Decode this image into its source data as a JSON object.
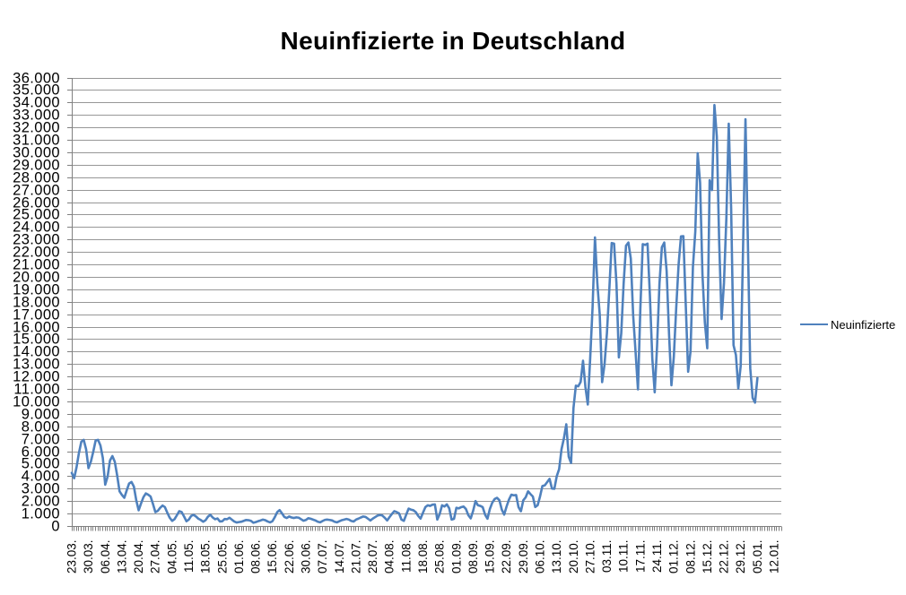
{
  "title": "Neuinfizierte in Deutschland",
  "legend": {
    "series_label": "Neuinfizierte"
  },
  "colors": {
    "series_line": "#4F81BD",
    "gridline": "#979797",
    "axis": "#808080",
    "text": "#000000",
    "background": "#FFFFFF"
  },
  "y_axis": {
    "min": 0,
    "max": 36000,
    "step": 1000,
    "tick_labels": [
      "36.000",
      "35.000",
      "34.000",
      "33.000",
      "32.000",
      "31.000",
      "30.000",
      "29.000",
      "28.000",
      "27.000",
      "26.000",
      "25.000",
      "24.000",
      "23.000",
      "22.000",
      "21.000",
      "20.000",
      "19.000",
      "18.000",
      "17.000",
      "16.000",
      "15.000",
      "14.000",
      "13.000",
      "12.000",
      "11.000",
      "10.000",
      "9.000",
      "8.000",
      "7.000",
      "6.000",
      "5.000",
      "4.000",
      "3.000",
      "2.000",
      "1.000",
      "0"
    ]
  },
  "x_axis": {
    "tick_labels": [
      "23.03.",
      "30.03.",
      "06.04.",
      "13.04.",
      "20.04.",
      "27.04.",
      "04.05.",
      "11.05.",
      "18.05.",
      "25.05.",
      "01.06.",
      "08.06.",
      "15.06.",
      "22.06.",
      "30.06.",
      "07.07.",
      "14.07.",
      "21.07.",
      "28.07.",
      "04.08.",
      "11.08.",
      "18.08.",
      "25.08.",
      "01.09.",
      "08.09.",
      "15.09.",
      "22.09.",
      "29.09.",
      "06.10.",
      "13.10.",
      "20.10.",
      "27.10.",
      "03.11.",
      "10.11.",
      "17.11.",
      "24.11.",
      "01.12.",
      "08.12.",
      "15.12.",
      "22.12.",
      "29.12.",
      "05.01.",
      "12.01."
    ],
    "label_every": 7
  },
  "chart_data": {
    "type": "line",
    "title": "Neuinfizierte in Deutschland",
    "xlabel": "",
    "ylabel": "",
    "ylim": [
      0,
      36000
    ],
    "grid": true,
    "legend_position": "right",
    "categories": [
      "23.03.",
      "24.03.",
      "25.03.",
      "26.03.",
      "27.03.",
      "28.03.",
      "29.03.",
      "30.03.",
      "31.03.",
      "01.04.",
      "02.04.",
      "03.04.",
      "04.04.",
      "05.04.",
      "06.04.",
      "07.04.",
      "08.04.",
      "09.04.",
      "10.04.",
      "11.04.",
      "12.04.",
      "13.04.",
      "14.04.",
      "15.04.",
      "16.04.",
      "17.04.",
      "18.04.",
      "19.04.",
      "20.04.",
      "21.04.",
      "22.04.",
      "23.04.",
      "24.04.",
      "25.04.",
      "26.04.",
      "27.04.",
      "28.04.",
      "29.04.",
      "30.04.",
      "01.05.",
      "02.05.",
      "03.05.",
      "04.05.",
      "05.05.",
      "06.05.",
      "07.05.",
      "08.05.",
      "09.05.",
      "10.05.",
      "11.05.",
      "12.05.",
      "13.05.",
      "14.05.",
      "15.05.",
      "16.05.",
      "17.05.",
      "18.05.",
      "19.05.",
      "20.05.",
      "21.05.",
      "22.05.",
      "23.05.",
      "24.05.",
      "25.05.",
      "26.05.",
      "27.05.",
      "28.05.",
      "29.05.",
      "30.05.",
      "31.05.",
      "01.06.",
      "02.06.",
      "03.06.",
      "04.06.",
      "05.06.",
      "06.06.",
      "07.06.",
      "08.06.",
      "09.06.",
      "10.06.",
      "11.06.",
      "12.06.",
      "13.06.",
      "14.06.",
      "15.06.",
      "16.06.",
      "17.06.",
      "18.06.",
      "19.06.",
      "20.06.",
      "21.06.",
      "22.06.",
      "23.06.",
      "24.06.",
      "25.06.",
      "26.06.",
      "27.06.",
      "28.06.",
      "30.06.",
      "01.07.",
      "02.07.",
      "03.07.",
      "04.07.",
      "05.07.",
      "06.07.",
      "07.07.",
      "08.07.",
      "09.07.",
      "10.07.",
      "11.07.",
      "12.07.",
      "13.07.",
      "14.07.",
      "15.07.",
      "16.07.",
      "17.07.",
      "18.07.",
      "19.07.",
      "20.07.",
      "21.07.",
      "22.07.",
      "23.07.",
      "24.07.",
      "25.07.",
      "26.07.",
      "27.07.",
      "28.07.",
      "29.07.",
      "30.07.",
      "31.07.",
      "01.08.",
      "02.08.",
      "03.08.",
      "04.08.",
      "05.08.",
      "06.08.",
      "07.08.",
      "08.08.",
      "09.08.",
      "10.08.",
      "11.08.",
      "12.08.",
      "13.08.",
      "14.08.",
      "15.08.",
      "16.08.",
      "17.08.",
      "18.08.",
      "19.08.",
      "20.08.",
      "21.08.",
      "22.08.",
      "23.08.",
      "24.08.",
      "25.08.",
      "26.08.",
      "27.08.",
      "28.08.",
      "29.08.",
      "30.08.",
      "31.08.",
      "01.09.",
      "02.09.",
      "03.09.",
      "04.09.",
      "05.09.",
      "06.09.",
      "07.09.",
      "08.09.",
      "09.09.",
      "10.09.",
      "11.09.",
      "12.09.",
      "13.09.",
      "14.09.",
      "15.09.",
      "16.09.",
      "17.09.",
      "18.09.",
      "19.09.",
      "20.09.",
      "21.09.",
      "22.09.",
      "23.09.",
      "24.09.",
      "25.09.",
      "26.09.",
      "27.09.",
      "28.09.",
      "29.09.",
      "30.09.",
      "01.10.",
      "02.10.",
      "03.10.",
      "04.10.",
      "05.10.",
      "06.10.",
      "07.10.",
      "08.10.",
      "09.10.",
      "10.10.",
      "11.10.",
      "12.10.",
      "13.10.",
      "14.10.",
      "15.10.",
      "16.10.",
      "17.10.",
      "18.10.",
      "19.10.",
      "20.10.",
      "21.10.",
      "22.10.",
      "23.10.",
      "24.10.",
      "25.10.",
      "26.10.",
      "27.10.",
      "28.10.",
      "29.10.",
      "30.10.",
      "31.10.",
      "01.11.",
      "02.11.",
      "03.11.",
      "04.11.",
      "05.11.",
      "06.11.",
      "07.11.",
      "08.11.",
      "09.11.",
      "10.11.",
      "11.11.",
      "12.11.",
      "13.11.",
      "14.11.",
      "15.11.",
      "16.11.",
      "17.11.",
      "18.11.",
      "19.11.",
      "20.11.",
      "21.11.",
      "22.11.",
      "23.11.",
      "24.11.",
      "25.11.",
      "26.11.",
      "27.11.",
      "28.11.",
      "29.11.",
      "30.11.",
      "01.12.",
      "02.12.",
      "03.12.",
      "04.12.",
      "05.12.",
      "06.12.",
      "07.12.",
      "08.12.",
      "09.12.",
      "10.12.",
      "11.12.",
      "12.12.",
      "13.12.",
      "14.12.",
      "15.12.",
      "16.12.",
      "17.12.",
      "18.12.",
      "19.12.",
      "20.12.",
      "21.12.",
      "22.12.",
      "23.12.",
      "24.12.",
      "25.12.",
      "26.12.",
      "27.12.",
      "28.12.",
      "29.12.",
      "30.12.",
      "31.12.",
      "01.01.",
      "02.01.",
      "03.01.",
      "04.01.",
      "05.01."
    ],
    "series": [
      {
        "name": "Neuinfizierte",
        "color": "#4F81BD",
        "values": [
          4300,
          3870,
          4750,
          5900,
          6800,
          6950,
          6200,
          4680,
          5200,
          6000,
          6900,
          6950,
          6500,
          5500,
          3350,
          4000,
          5300,
          5650,
          5200,
          4100,
          2820,
          2530,
          2300,
          2900,
          3450,
          3570,
          3200,
          2100,
          1300,
          1850,
          2350,
          2650,
          2550,
          2400,
          1800,
          1150,
          1250,
          1500,
          1680,
          1550,
          1100,
          700,
          450,
          580,
          900,
          1230,
          1150,
          800,
          420,
          550,
          850,
          930,
          800,
          620,
          520,
          380,
          500,
          780,
          940,
          720,
          580,
          640,
          400,
          420,
          600,
          580,
          700,
          550,
          400,
          320,
          350,
          380,
          450,
          520,
          500,
          450,
          300,
          350,
          420,
          480,
          550,
          500,
          400,
          330,
          420,
          750,
          1150,
          1310,
          1050,
          760,
          680,
          800,
          720,
          680,
          730,
          700,
          580,
          460,
          520,
          660,
          620,
          550,
          480,
          380,
          330,
          440,
          530,
          550,
          520,
          480,
          380,
          330,
          420,
          500,
          550,
          600,
          550,
          440,
          400,
          550,
          630,
          720,
          800,
          760,
          620,
          480,
          630,
          750,
          870,
          920,
          880,
          700,
          480,
          750,
          1000,
          1230,
          1150,
          1050,
          550,
          450,
          950,
          1430,
          1350,
          1300,
          1150,
          850,
          630,
          1100,
          1550,
          1700,
          1650,
          1750,
          1770,
          550,
          1000,
          1700,
          1600,
          1770,
          1450,
          550,
          610,
          1500,
          1450,
          1550,
          1600,
          1400,
          900,
          650,
          1250,
          2040,
          1700,
          1650,
          1550,
          950,
          620,
          1400,
          1900,
          2200,
          2300,
          2100,
          1350,
          950,
          1600,
          2150,
          2550,
          2500,
          2520,
          1550,
          1220,
          2100,
          2340,
          2820,
          2600,
          2400,
          1560,
          1700,
          2400,
          3250,
          3300,
          3560,
          3820,
          3040,
          3020,
          4030,
          4600,
          6200,
          7070,
          8200,
          5600,
          5100,
          9500,
          11300,
          11250,
          11600,
          13300,
          11200,
          9790,
          13500,
          17600,
          23200,
          19500,
          17000,
          11580,
          13000,
          15500,
          19000,
          22750,
          22700,
          19500,
          13570,
          15500,
          19500,
          22540,
          22790,
          21500,
          16900,
          14000,
          11000,
          17500,
          22660,
          22600,
          22700,
          18500,
          13500,
          10770,
          14500,
          19500,
          22410,
          22790,
          20500,
          15500,
          11330,
          13600,
          17500,
          21000,
          23280,
          23300,
          17800,
          12420,
          14050,
          20820,
          23680,
          29960,
          27600,
          20200,
          16360,
          14300,
          27800,
          27000,
          33830,
          31300,
          22770,
          16650,
          19530,
          24740,
          32330,
          25530,
          14550,
          13760,
          11070,
          12890,
          22460,
          32690,
          22920,
          12690,
          10320,
          9940,
          11920
        ]
      }
    ]
  }
}
